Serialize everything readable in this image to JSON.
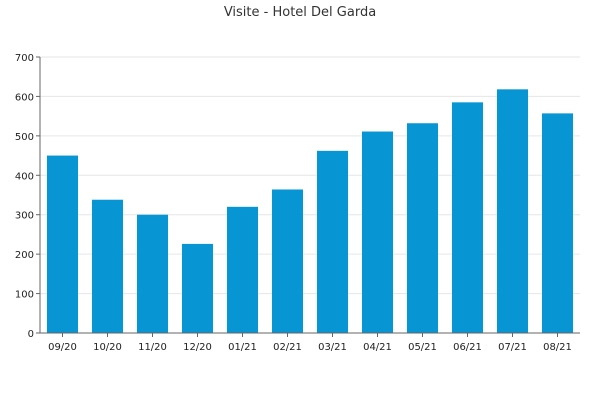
{
  "chart_data": {
    "type": "bar",
    "title": "Visite - Hotel Del Garda",
    "xlabel": "",
    "ylabel": "",
    "categories": [
      "09/20",
      "10/20",
      "11/20",
      "12/20",
      "01/21",
      "02/21",
      "03/21",
      "04/21",
      "05/21",
      "06/21",
      "07/21",
      "08/21"
    ],
    "values": [
      450,
      338,
      300,
      226,
      320,
      364,
      462,
      511,
      532,
      585,
      618,
      557
    ],
    "ylim": [
      0,
      700
    ],
    "yticks": [
      0,
      100,
      200,
      300,
      400,
      500,
      600,
      700
    ],
    "grid": true,
    "legend": "none",
    "colors": {
      "bar": "#0795d3",
      "grid": "#e6e6e6",
      "axis": "#666666",
      "text": "#222222"
    }
  }
}
